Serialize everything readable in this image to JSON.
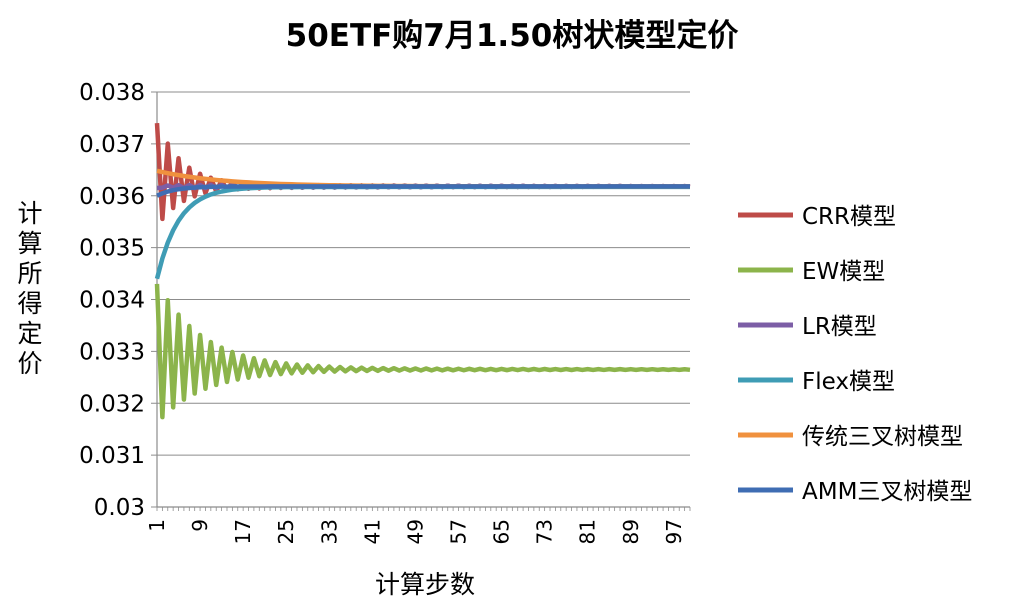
{
  "chart_data": {
    "type": "line",
    "title": "50ETF购7月1.50树状模型定价",
    "xlabel": "计算步数",
    "ylabel": "计算所得定价",
    "ylim": [
      0.03,
      0.038
    ],
    "y_ticks": [
      "0.038",
      "0.037",
      "0.036",
      "0.035",
      "0.034",
      "0.033",
      "0.032",
      "0.031",
      "0.03"
    ],
    "x_ticks": [
      "1",
      "9",
      "17",
      "25",
      "33",
      "41",
      "49",
      "57",
      "65",
      "73",
      "81",
      "89",
      "97"
    ],
    "x_range": [
      1,
      100
    ],
    "grid": "horizontal",
    "legend_position": "right",
    "series": [
      {
        "name": "CRR模型",
        "color": "#be4b48",
        "start": 0.0374,
        "converge": 0.03618,
        "amp": 0.0012,
        "decay": 0.22,
        "oscillate": true
      },
      {
        "name": "EW模型",
        "color": "#8cb44b",
        "start": 0.0343,
        "converge": 0.03265,
        "amp": 0.0016,
        "decay": 0.12,
        "oscillate": true
      },
      {
        "name": "LR模型",
        "color": "#7c5ea6",
        "start": 0.03615,
        "converge": 0.03618,
        "amp": 0.0001,
        "decay": 0.2,
        "oscillate": true
      },
      {
        "name": "Flex模型",
        "color": "#3f9cb5",
        "start": 0.0344,
        "converge": 0.03617,
        "amp": 0.0018,
        "decay": 0.25,
        "oscillate": false
      },
      {
        "name": "传统三叉树模型",
        "color": "#f0913e",
        "start": 0.03648,
        "converge": 0.03618,
        "amp": 0.0003,
        "decay": 0.08,
        "oscillate": false
      },
      {
        "name": "AMM三叉树模型",
        "color": "#3f6db3",
        "start": 0.036,
        "converge": 0.03618,
        "amp": 0.0002,
        "decay": 0.3,
        "oscillate": false
      }
    ]
  }
}
